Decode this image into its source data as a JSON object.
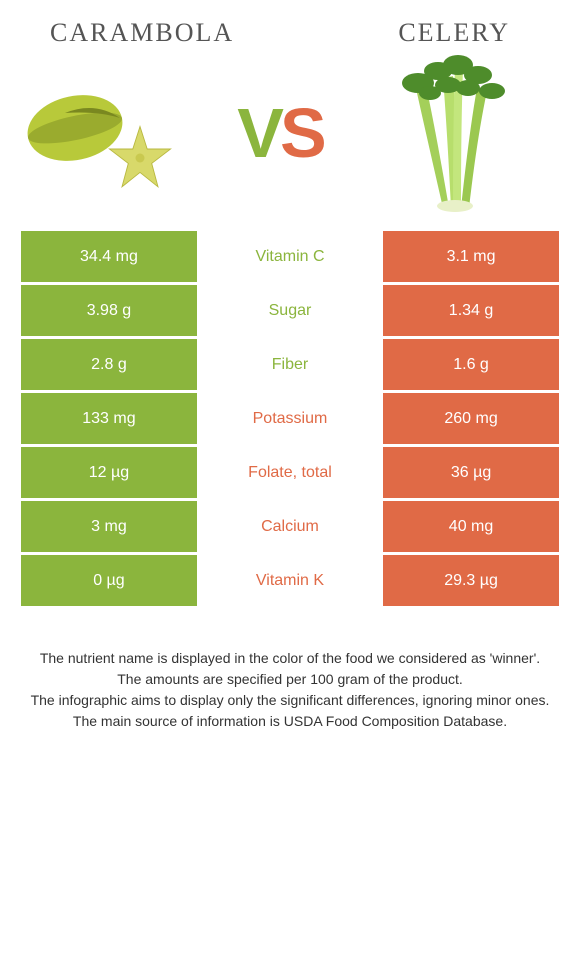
{
  "colors": {
    "left": "#8bb53d",
    "right": "#e06a46",
    "white": "#ffffff"
  },
  "foods": {
    "left": {
      "title": "CARAMBOLA"
    },
    "right": {
      "title": "CELERY"
    }
  },
  "vs": {
    "v": "V",
    "s": "S"
  },
  "rows": [
    {
      "left": "34.4 mg",
      "label": "Vitamin C",
      "right": "3.1 mg",
      "winner": "left"
    },
    {
      "left": "3.98 g",
      "label": "Sugar",
      "right": "1.34 g",
      "winner": "left"
    },
    {
      "left": "2.8 g",
      "label": "Fiber",
      "right": "1.6 g",
      "winner": "left"
    },
    {
      "left": "133 mg",
      "label": "Potassium",
      "right": "260 mg",
      "winner": "right"
    },
    {
      "left": "12 µg",
      "label": "Folate, total",
      "right": "36 µg",
      "winner": "right"
    },
    {
      "left": "3 mg",
      "label": "Calcium",
      "right": "40 mg",
      "winner": "right"
    },
    {
      "left": "0 µg",
      "label": "Vitamin K",
      "right": "29.3 µg",
      "winner": "right"
    }
  ],
  "footnotes": [
    "The nutrient name is displayed in the color of the food we considered as 'winner'.",
    "The amounts are specified per 100 gram of the product.",
    "The infographic aims to display only the significant differences, ignoring minor ones.",
    "The main source of information is USDA Food Composition Database."
  ]
}
